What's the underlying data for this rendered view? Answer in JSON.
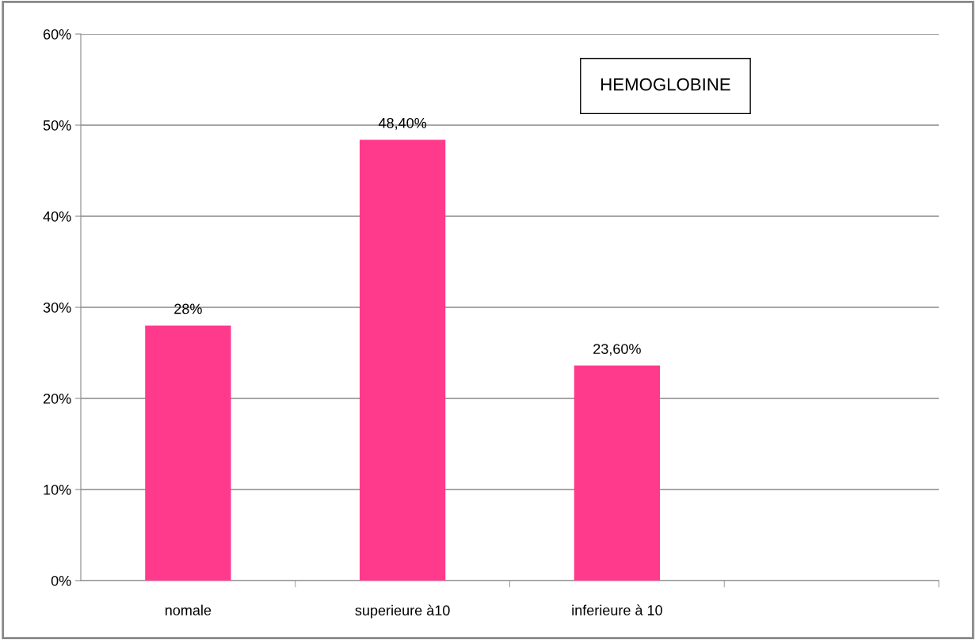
{
  "chart_data": {
    "type": "bar",
    "title": "HEMOGLOBINE",
    "categories": [
      "nomale",
      "superieure à10",
      "inferieure à 10",
      null
    ],
    "values": [
      28,
      48.4,
      23.6,
      null
    ],
    "value_labels": [
      "28%",
      "48,40%",
      "23,60%",
      null
    ],
    "color": "#ff3a8c",
    "ylim": [
      0,
      60
    ],
    "yticks": [
      {
        "value": 0,
        "label": "0%"
      },
      {
        "value": 10,
        "label": "10%"
      },
      {
        "value": 20,
        "label": "20%"
      },
      {
        "value": 30,
        "label": "30%"
      },
      {
        "value": 40,
        "label": "40%"
      },
      {
        "value": 50,
        "label": "50%"
      },
      {
        "value": 60,
        "label": "60%"
      }
    ],
    "grid": "y"
  }
}
